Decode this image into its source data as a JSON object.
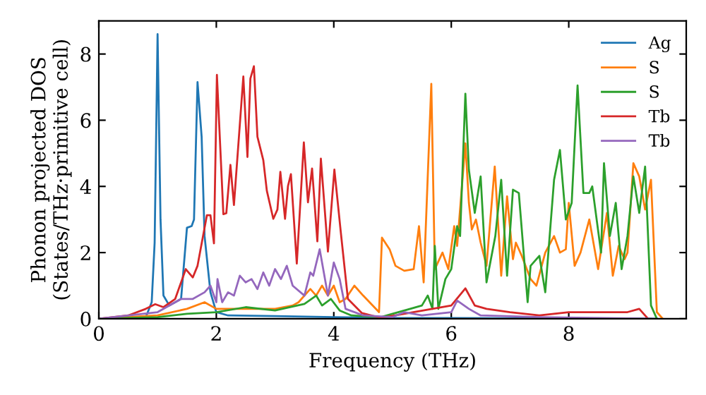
{
  "chart_data": {
    "type": "line",
    "xlabel": "Frequency (THz)",
    "ylabel": "Phonon projected DOS\n(States/THz·primitive cell)",
    "xlim": [
      0,
      10
    ],
    "ylim": [
      0,
      9
    ],
    "xticks": [
      0,
      2,
      4,
      6,
      8
    ],
    "yticks": [
      0,
      2,
      4,
      6,
      8
    ],
    "grid": false,
    "legend": "top right",
    "marker": "none",
    "line_style": "solid",
    "series": [
      {
        "name": "Ag",
        "color": "#1f77b4",
        "x": [
          0,
          0.8,
          0.9,
          0.95,
          1.0,
          1.05,
          1.1,
          1.2,
          1.4,
          1.5,
          1.58,
          1.62,
          1.68,
          1.75,
          1.8,
          1.9,
          2.0,
          2.2,
          3.0,
          4.0,
          5.0,
          6.0,
          9.5
        ],
        "values": [
          0,
          0.05,
          0.5,
          2.3,
          8.6,
          3,
          0.7,
          0.4,
          0.6,
          2.75,
          2.8,
          3.0,
          7.15,
          5.5,
          2.5,
          0.8,
          0.2,
          0.1,
          0.08,
          0.05,
          0.02,
          0.02,
          0
        ]
      },
      {
        "name": "S",
        "color": "#ff7f0e",
        "x": [
          0,
          1,
          1.5,
          1.8,
          2.0,
          2.5,
          3.0,
          3.3,
          3.4,
          3.6,
          3.7,
          3.8,
          3.9,
          4.0,
          4.1,
          4.2,
          4.35,
          4.5,
          4.77,
          4.82,
          4.95,
          5.05,
          5.2,
          5.36,
          5.45,
          5.53,
          5.66,
          5.72,
          5.85,
          5.95,
          6.05,
          6.1,
          6.24,
          6.3,
          6.35,
          6.42,
          6.5,
          6.6,
          6.74,
          6.85,
          6.95,
          7.05,
          7.1,
          7.2,
          7.35,
          7.45,
          7.6,
          7.75,
          7.85,
          7.95,
          8.0,
          8.1,
          8.2,
          8.35,
          8.5,
          8.65,
          8.75,
          8.85,
          8.95,
          9.0,
          9.1,
          9.2,
          9.3,
          9.4,
          9.5,
          9.6
        ],
        "values": [
          0,
          0.1,
          0.3,
          0.5,
          0.3,
          0.3,
          0.3,
          0.4,
          0.5,
          0.9,
          0.7,
          1.0,
          0.7,
          1.0,
          0.5,
          0.6,
          1.0,
          0.7,
          0.2,
          2.45,
          2.1,
          1.6,
          1.45,
          1.5,
          2.8,
          1.1,
          7.1,
          1.5,
          2.0,
          1.5,
          2.8,
          2.2,
          5.3,
          3.5,
          2.7,
          3.0,
          2.3,
          1.6,
          4.6,
          1.3,
          3.7,
          1.8,
          2.3,
          1.9,
          1.2,
          1.0,
          2.0,
          2.5,
          2.0,
          2.1,
          3.5,
          1.6,
          2.0,
          3.0,
          1.5,
          3.2,
          1.3,
          2.2,
          1.8,
          2.0,
          4.7,
          4.3,
          3.3,
          4.2,
          0.2,
          0
        ]
      },
      {
        "name": "S",
        "color": "#2ca02c",
        "x": [
          0,
          1,
          1.5,
          2,
          2.5,
          3.0,
          3.5,
          3.7,
          3.8,
          3.95,
          4.1,
          4.3,
          4.8,
          5.0,
          5.3,
          5.5,
          5.6,
          5.68,
          5.72,
          5.78,
          5.9,
          6.0,
          6.1,
          6.15,
          6.24,
          6.3,
          6.4,
          6.5,
          6.6,
          6.75,
          6.85,
          6.95,
          7.05,
          7.15,
          7.3,
          7.35,
          7.5,
          7.6,
          7.75,
          7.85,
          7.95,
          8.05,
          8.15,
          8.25,
          8.35,
          8.4,
          8.55,
          8.6,
          8.7,
          8.8,
          8.9,
          9.0,
          9.1,
          9.2,
          9.3,
          9.4,
          9.5
        ],
        "values": [
          0,
          0.05,
          0.15,
          0.2,
          0.35,
          0.25,
          0.45,
          0.7,
          0.4,
          0.6,
          0.25,
          0.1,
          0.05,
          0.15,
          0.3,
          0.4,
          0.7,
          0.3,
          2.2,
          0.3,
          1.2,
          1.5,
          2.8,
          2.5,
          6.8,
          4.5,
          3.2,
          4.3,
          1.1,
          2.5,
          4.2,
          1.3,
          3.9,
          3.8,
          0.5,
          1.6,
          1.9,
          0.8,
          4.2,
          5.1,
          3.0,
          3.5,
          7.05,
          3.8,
          3.8,
          4.0,
          2.0,
          4.7,
          2.5,
          3.5,
          1.5,
          2.5,
          4.3,
          3.2,
          4.6,
          0.4,
          0
        ]
      },
      {
        "name": "Tb",
        "color": "#d62728",
        "x": [
          0,
          0.5,
          0.8,
          0.96,
          1.1,
          1.3,
          1.48,
          1.6,
          1.68,
          1.84,
          1.9,
          1.96,
          2.01,
          2.12,
          2.17,
          2.24,
          2.3,
          2.46,
          2.53,
          2.58,
          2.64,
          2.7,
          2.8,
          2.86,
          2.97,
          3.04,
          3.09,
          3.17,
          3.22,
          3.27,
          3.37,
          3.49,
          3.56,
          3.63,
          3.72,
          3.78,
          3.9,
          4.01,
          4.12,
          4.24,
          4.48,
          4.8,
          5.2,
          6.0,
          6.24,
          6.4,
          6.6,
          7.0,
          7.5,
          8.0,
          8.5,
          9.0,
          9.2,
          9.35
        ],
        "values": [
          0,
          0.1,
          0.3,
          0.44,
          0.35,
          0.6,
          1.5,
          1.25,
          1.6,
          3.13,
          3.13,
          2.28,
          7.37,
          3.16,
          3.19,
          4.65,
          3.44,
          7.32,
          4.89,
          7.26,
          7.63,
          5.5,
          4.79,
          3.87,
          3.02,
          3.3,
          4.44,
          3.02,
          4.01,
          4.37,
          1.67,
          5.33,
          3.52,
          4.54,
          2.34,
          4.84,
          2.03,
          4.51,
          2.6,
          0.6,
          0.17,
          0.03,
          0.15,
          0.4,
          0.92,
          0.4,
          0.3,
          0.2,
          0.1,
          0.2,
          0.2,
          0.2,
          0.3,
          0
        ]
      },
      {
        "name": "Tb",
        "color": "#9467bd",
        "x": [
          0,
          1.0,
          1.4,
          1.6,
          1.8,
          1.9,
          2.0,
          2.02,
          2.1,
          2.2,
          2.3,
          2.4,
          2.5,
          2.6,
          2.7,
          2.8,
          2.9,
          3.0,
          3.1,
          3.2,
          3.3,
          3.5,
          3.6,
          3.65,
          3.76,
          3.9,
          4.0,
          4.1,
          4.2,
          4.5,
          5.0,
          5.2,
          5.5,
          6.0,
          6.1,
          6.3,
          6.5,
          7.5,
          9.4
        ],
        "values": [
          0,
          0.2,
          0.6,
          0.6,
          0.8,
          1.0,
          0.5,
          1.2,
          0.5,
          0.8,
          0.7,
          1.3,
          1.1,
          1.2,
          0.9,
          1.4,
          1.0,
          1.5,
          1.2,
          1.6,
          1.0,
          0.7,
          1.4,
          1.3,
          2.1,
          0.7,
          1.7,
          1.2,
          0.3,
          0.1,
          0.05,
          0.2,
          0.1,
          0.2,
          0.55,
          0.3,
          0.1,
          0.05,
          0
        ]
      }
    ]
  }
}
